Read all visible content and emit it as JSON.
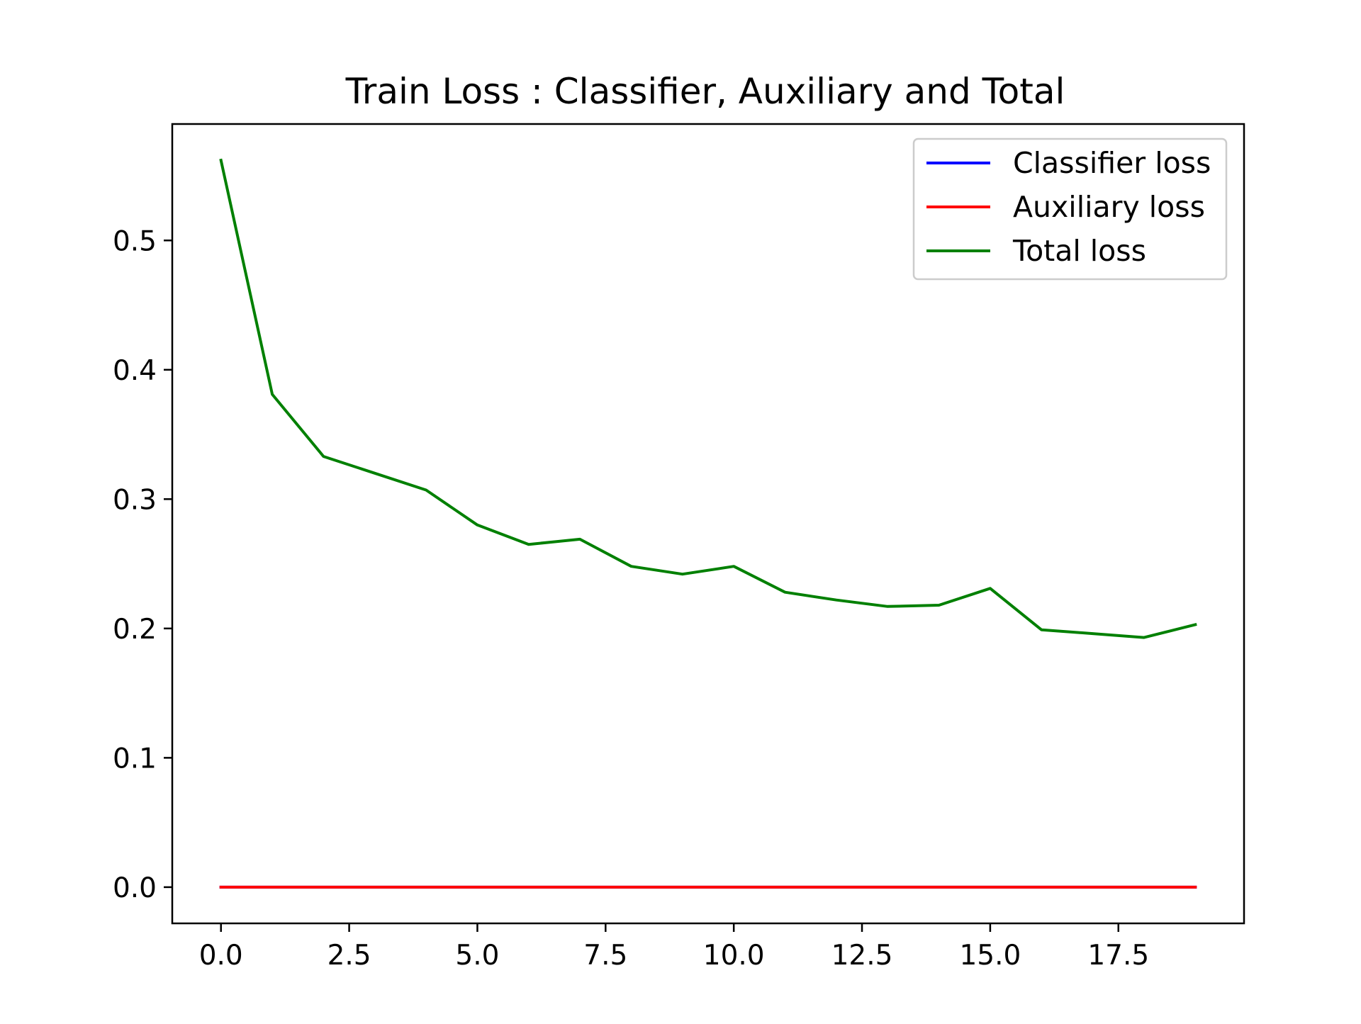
{
  "chart_data": {
    "type": "line",
    "title": "Train Loss : Classifier, Auxiliary and Total",
    "xlabel": "",
    "ylabel": "",
    "xlim": [
      -0.95,
      19.95
    ],
    "ylim": [
      -0.028,
      0.59
    ],
    "x_ticks": [
      0.0,
      2.5,
      5.0,
      7.5,
      10.0,
      12.5,
      15.0,
      17.5
    ],
    "x_tick_labels": [
      "0.0",
      "2.5",
      "5.0",
      "7.5",
      "10.0",
      "12.5",
      "15.0",
      "17.5"
    ],
    "y_ticks": [
      0.0,
      0.1,
      0.2,
      0.3,
      0.4,
      0.5
    ],
    "y_tick_labels": [
      "0.0",
      "0.1",
      "0.2",
      "0.3",
      "0.4",
      "0.5"
    ],
    "grid": false,
    "legend_position": "top-right",
    "x": [
      0,
      1,
      2,
      3,
      4,
      5,
      6,
      7,
      8,
      9,
      10,
      11,
      12,
      13,
      14,
      15,
      16,
      17,
      18,
      19
    ],
    "series": [
      {
        "name": "Classifier loss",
        "color": "#0000ff",
        "values": [
          0,
          0,
          0,
          0,
          0,
          0,
          0,
          0,
          0,
          0,
          0,
          0,
          0,
          0,
          0,
          0,
          0,
          0,
          0,
          0
        ]
      },
      {
        "name": "Auxiliary loss",
        "color": "#ff0000",
        "values": [
          0,
          0,
          0,
          0,
          0,
          0,
          0,
          0,
          0,
          0,
          0,
          0,
          0,
          0,
          0,
          0,
          0,
          0,
          0,
          0
        ]
      },
      {
        "name": "Total loss",
        "color": "#008000",
        "values": [
          0.562,
          0.381,
          0.333,
          0.32,
          0.307,
          0.28,
          0.265,
          0.269,
          0.248,
          0.242,
          0.248,
          0.228,
          0.222,
          0.217,
          0.218,
          0.231,
          0.199,
          0.196,
          0.193,
          0.203
        ]
      }
    ]
  }
}
